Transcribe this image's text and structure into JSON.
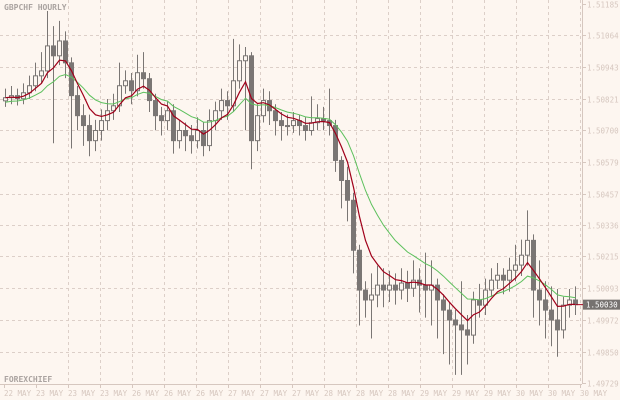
{
  "chart_data": {
    "type": "candlestick",
    "title": "GBPCHF HOURLY",
    "watermark": "FOREXCHIEF",
    "ylim": [
      1.49729,
      1.51185
    ],
    "y_ticks": [
      "1.51185",
      "1.51064",
      "1.50943",
      "1.50821",
      "1.50700",
      "1.50579",
      "1.50457",
      "1.50336",
      "1.50215",
      "1.50093",
      "1.49972",
      "1.49850",
      "1.49729"
    ],
    "x_ticks": [
      "22 MAY",
      "23 MAY",
      "23 MAY",
      "23 MAY",
      "26 MAY",
      "26 MAY",
      "26 MAY",
      "27 MAY",
      "27 MAY",
      "27 MAY",
      "28 MAY",
      "28 MAY",
      "28 MAY",
      "29 MAY",
      "29 MAY",
      "29 MAY",
      "30 MAY",
      "30 MAY",
      "30 MAY"
    ],
    "current_price": "1.50030",
    "grid": true,
    "colors": {
      "background": "#fdf6f0",
      "grid": "#dccfc8",
      "candle": "#7a7674",
      "fast_ma": "#a0001a",
      "slow_ma": "#5cc05c",
      "price_tag": "#767270"
    },
    "candles": [
      [
        1.50813,
        1.5086,
        1.5079,
        1.50825
      ],
      [
        1.50825,
        1.5087,
        1.508,
        1.50833
      ],
      [
        1.50833,
        1.5086,
        1.50795,
        1.50821
      ],
      [
        1.50821,
        1.5088,
        1.508,
        1.50844
      ],
      [
        1.50844,
        1.5091,
        1.5082,
        1.50871
      ],
      [
        1.50871,
        1.5096,
        1.5085,
        1.50909
      ],
      [
        1.50909,
        1.51,
        1.5088,
        1.50928
      ],
      [
        1.50928,
        1.51158,
        1.509,
        1.51024
      ],
      [
        1.51024,
        1.511,
        1.5065,
        1.50986
      ],
      [
        1.50986,
        1.5112,
        1.5095,
        1.51043
      ],
      [
        1.51043,
        1.5108,
        1.509,
        1.50959
      ],
      [
        1.50959,
        1.5098,
        1.5063,
        1.50833
      ],
      [
        1.50833,
        1.5087,
        1.507,
        1.50756
      ],
      [
        1.50756,
        1.508,
        1.5064,
        1.50718
      ],
      [
        1.50718,
        1.5076,
        1.506,
        1.5066
      ],
      [
        1.5066,
        1.5074,
        1.5062,
        1.50699
      ],
      [
        1.50699,
        1.5078,
        1.5066,
        1.50737
      ],
      [
        1.50737,
        1.5082,
        1.507,
        1.50775
      ],
      [
        1.50775,
        1.5084,
        1.5074,
        1.50794
      ],
      [
        1.50794,
        1.5096,
        1.5077,
        1.50871
      ],
      [
        1.50871,
        1.5093,
        1.5084,
        1.5089
      ],
      [
        1.5089,
        1.5092,
        1.508,
        1.50852
      ],
      [
        1.50852,
        1.5099,
        1.5083,
        1.50921
      ],
      [
        1.50921,
        1.51,
        1.5086,
        1.50898
      ],
      [
        1.50898,
        1.5092,
        1.5077,
        1.50814
      ],
      [
        1.50814,
        1.5084,
        1.507,
        1.50756
      ],
      [
        1.50756,
        1.5079,
        1.5068,
        1.50737
      ],
      [
        1.50737,
        1.5081,
        1.507,
        1.50775
      ],
      [
        1.50775,
        1.508,
        1.5061,
        1.5066
      ],
      [
        1.5066,
        1.5074,
        1.5063,
        1.50699
      ],
      [
        1.50699,
        1.5073,
        1.5062,
        1.50679
      ],
      [
        1.50679,
        1.5072,
        1.5061,
        1.5066
      ],
      [
        1.5066,
        1.5075,
        1.5063,
        1.50699
      ],
      [
        1.50699,
        1.5073,
        1.506,
        1.50641
      ],
      [
        1.50641,
        1.5078,
        1.5062,
        1.50737
      ],
      [
        1.50737,
        1.5081,
        1.507,
        1.50775
      ],
      [
        1.50775,
        1.5086,
        1.5074,
        1.50814
      ],
      [
        1.50814,
        1.5085,
        1.5074,
        1.50794
      ],
      [
        1.50794,
        1.51051,
        1.5077,
        1.5089
      ],
      [
        1.5089,
        1.5103,
        1.5086,
        1.50967
      ],
      [
        1.50967,
        1.5102,
        1.507,
        1.50986
      ],
      [
        1.50986,
        1.51,
        1.5055,
        1.5066
      ],
      [
        1.5066,
        1.508,
        1.5062,
        1.50756
      ],
      [
        1.50756,
        1.5086,
        1.5073,
        1.50814
      ],
      [
        1.50814,
        1.5085,
        1.5072,
        1.50775
      ],
      [
        1.50775,
        1.508,
        1.5068,
        1.50737
      ],
      [
        1.50737,
        1.5077,
        1.5066,
        1.50718
      ],
      [
        1.50718,
        1.5076,
        1.5068,
        1.50718
      ],
      [
        1.50718,
        1.5077,
        1.5069,
        1.50737
      ],
      [
        1.50737,
        1.5076,
        1.5068,
        1.50718
      ],
      [
        1.50718,
        1.5075,
        1.5066,
        1.50699
      ],
      [
        1.50699,
        1.5083,
        1.5068,
        1.50729
      ],
      [
        1.50729,
        1.508,
        1.507,
        1.50745
      ],
      [
        1.50745,
        1.5079,
        1.507,
        1.50737
      ],
      [
        1.50737,
        1.5086,
        1.5068,
        1.50718
      ],
      [
        1.50718,
        1.5074,
        1.5054,
        1.50584
      ],
      [
        1.50584,
        1.506,
        1.504,
        1.50507
      ],
      [
        1.50507,
        1.5056,
        1.5035,
        1.50431
      ],
      [
        1.50431,
        1.5046,
        1.5015,
        1.50239
      ],
      [
        1.50239,
        1.5026,
        1.4995,
        1.50086
      ],
      [
        1.50086,
        1.5012,
        1.4998,
        1.50048
      ],
      [
        1.50048,
        1.5015,
        1.499,
        1.50067
      ],
      [
        1.50067,
        1.5018,
        1.5002,
        1.50105
      ],
      [
        1.50105,
        1.5017,
        1.5002,
        1.50086
      ],
      [
        1.50086,
        1.5016,
        1.5004,
        1.50105
      ],
      [
        1.50105,
        1.5015,
        1.5003,
        1.50086
      ],
      [
        1.50086,
        1.5017,
        1.5005,
        1.50113
      ],
      [
        1.50113,
        1.5016,
        1.5004,
        1.50093
      ],
      [
        1.50093,
        1.502,
        1.5006,
        1.50124
      ],
      [
        1.50124,
        1.5017,
        1.5,
        1.50105
      ],
      [
        1.50105,
        1.5023,
        1.4998,
        1.50086
      ],
      [
        1.50086,
        1.502,
        1.4995,
        1.50105
      ],
      [
        1.50105,
        1.5013,
        1.499,
        1.50048
      ],
      [
        1.50048,
        1.5007,
        1.4984,
        1.50009
      ],
      [
        1.50009,
        1.5004,
        1.498,
        1.49971
      ],
      [
        1.49971,
        1.5001,
        1.4976,
        1.49952
      ],
      [
        1.49952,
        1.5012,
        1.4976,
        1.49933
      ],
      [
        1.49933,
        1.4999,
        1.498,
        1.49913
      ],
      [
        1.49913,
        1.5008,
        1.4988,
        1.50048
      ],
      [
        1.50048,
        1.5011,
        1.4998,
        1.50028
      ],
      [
        1.50028,
        1.5013,
        1.4999,
        1.50086
      ],
      [
        1.50086,
        1.5017,
        1.5006,
        1.50124
      ],
      [
        1.50124,
        1.5019,
        1.5009,
        1.50143
      ],
      [
        1.50143,
        1.5017,
        1.5007,
        1.50124
      ],
      [
        1.50124,
        1.5021,
        1.5008,
        1.50162
      ],
      [
        1.50162,
        1.5026,
        1.5012,
        1.50182
      ],
      [
        1.50182,
        1.5028,
        1.5014,
        1.5022
      ],
      [
        1.5022,
        1.50392,
        1.5018,
        1.50277
      ],
      [
        1.50277,
        1.503,
        1.4998,
        1.50086
      ],
      [
        1.50086,
        1.502,
        1.4995,
        1.50048
      ],
      [
        1.50048,
        1.5012,
        1.499,
        1.50009
      ],
      [
        1.50009,
        1.501,
        1.4987,
        1.49971
      ],
      [
        1.49971,
        1.5009,
        1.4983,
        1.49933
      ],
      [
        1.49933,
        1.5006,
        1.499,
        1.50028
      ],
      [
        1.50028,
        1.5009,
        1.4998,
        1.50048
      ],
      [
        1.50048,
        1.501,
        1.4999,
        1.5003
      ]
    ]
  }
}
